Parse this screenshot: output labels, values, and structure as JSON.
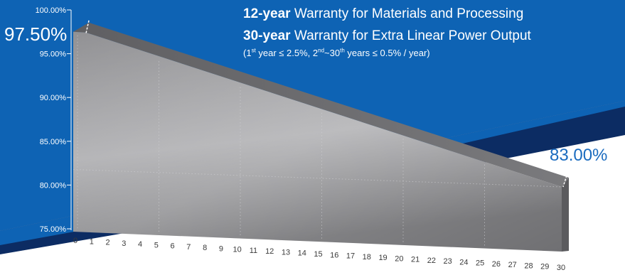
{
  "header": {
    "line1_bold": "12-year",
    "line1_text": " Warranty for Materials and Processing",
    "line2_bold": "30-year",
    "line2_text": " Warranty for Extra Linear Power Output",
    "line3_open": "(1",
    "line3_sup1": "st",
    "line3_mid1": " year ≤ 2.5%, 2",
    "line3_sup2": "nd",
    "line3_mid2": "~30",
    "line3_sup3": "th",
    "line3_end": " years ≤ 0.5% / year)"
  },
  "callouts": {
    "start": "97.50%",
    "end": "83.00%"
  },
  "colors": {
    "blue_band": "#0e63b4",
    "navy_band": "#0c2c63",
    "end_label": "#1a6bbf"
  },
  "chart_data": {
    "type": "area",
    "title": "",
    "xlabel": "",
    "ylabel": "",
    "x": [
      0,
      1,
      2,
      3,
      4,
      5,
      6,
      7,
      8,
      9,
      10,
      11,
      12,
      13,
      14,
      15,
      16,
      17,
      18,
      19,
      20,
      21,
      22,
      23,
      24,
      25,
      26,
      27,
      28,
      29,
      30
    ],
    "x_tick_labels": [
      "0",
      "1",
      "2",
      "3",
      "4",
      "5",
      "6",
      "7",
      "8",
      "9",
      "10",
      "11",
      "12",
      "13",
      "14",
      "15",
      "16",
      "17",
      "18",
      "19",
      "20",
      "21",
      "22",
      "23",
      "24",
      "25",
      "26",
      "27",
      "28",
      "29",
      "30"
    ],
    "y_tick_labels": [
      "100.00%",
      "95.00%",
      "90.00%",
      "85.00%",
      "80.00%",
      "75.00%"
    ],
    "y_ticks": [
      100,
      95,
      90,
      85,
      80,
      75
    ],
    "ylim": [
      75,
      100
    ],
    "series": [
      {
        "values": [
          97.5,
          97.5,
          95.0,
          94.5,
          94.0,
          93.5,
          93.0,
          92.5,
          92.0,
          91.5,
          91.0,
          90.5,
          90.0,
          89.5,
          89.0,
          88.5,
          88.0,
          87.5,
          87.0,
          86.5,
          86.0,
          85.5,
          85.0,
          84.5,
          84.0,
          83.5,
          83.0,
          82.5,
          82.0,
          81.5,
          83.0
        ]
      }
    ],
    "grid": true
  }
}
